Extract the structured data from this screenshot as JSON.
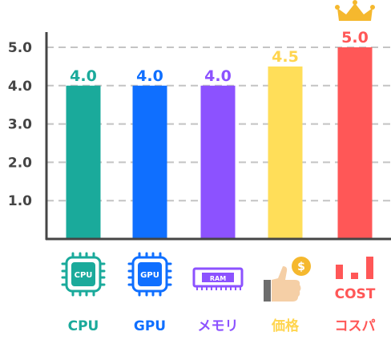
{
  "chart_data": {
    "type": "bar",
    "categories": [
      "CPU",
      "GPU",
      "メモリ",
      "価格",
      "コスパ"
    ],
    "values": [
      4.0,
      4.0,
      4.0,
      4.5,
      5.0
    ],
    "value_labels": [
      "4.0",
      "4.0",
      "4.0",
      "4.5",
      "5.0"
    ],
    "yticks": [
      "1.0",
      "2.0",
      "3.0",
      "4.0",
      "5.0"
    ],
    "ylim": [
      0,
      5.2
    ],
    "grid": true,
    "title": "",
    "xlabel": "",
    "ylabel": "",
    "colors": [
      "#1aaa9b",
      "#0f6fff",
      "#8c52ff",
      "#ffde59",
      "#ff5757"
    ],
    "value_label_colors": [
      "#1aaa9b",
      "#0f6fff",
      "#8c52ff",
      "#ffd54f",
      "#ff5757"
    ]
  },
  "icons": [
    {
      "name": "cpu-chip-icon",
      "text": "CPU"
    },
    {
      "name": "gpu-chip-icon",
      "text": "GPU"
    },
    {
      "name": "ram-module-icon",
      "text": "RAM"
    },
    {
      "name": "price-thumbs-up-icon",
      "text": "$"
    },
    {
      "name": "cost-bars-icon",
      "text": "COST"
    }
  ],
  "crown": {
    "name": "crown-icon",
    "color": "#f5b82e"
  }
}
